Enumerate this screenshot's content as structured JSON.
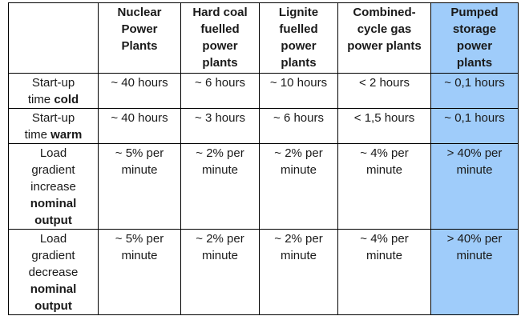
{
  "table": {
    "columns": [
      {
        "key": "label",
        "label": ""
      },
      {
        "key": "nuclear",
        "lines": [
          "Nuclear",
          "Power",
          "Plants"
        ]
      },
      {
        "key": "hard_coal",
        "lines": [
          "Hard coal",
          "fuelled",
          "power",
          "plants"
        ]
      },
      {
        "key": "lignite",
        "lines": [
          "Lignite",
          "fuelled",
          "power",
          "plants"
        ]
      },
      {
        "key": "ccgt",
        "lines": [
          "Combined-",
          "cycle gas",
          "power plants"
        ]
      },
      {
        "key": "pumped",
        "lines": [
          "Pumped",
          "storage",
          "power",
          "plants"
        ],
        "highlight_color": "#9fccfa"
      }
    ],
    "rows": [
      {
        "label_lines": [
          {
            "text": "Start-up",
            "bold": ""
          },
          {
            "text": "time ",
            "bold": "cold"
          }
        ],
        "values": [
          [
            "~ 40 hours"
          ],
          [
            "~ 6 hours"
          ],
          [
            "~ 10 hours"
          ],
          [
            "< 2 hours"
          ],
          [
            "~ 0,1 hours"
          ]
        ]
      },
      {
        "label_lines": [
          {
            "text": "Start-up",
            "bold": ""
          },
          {
            "text": "time ",
            "bold": "warm"
          }
        ],
        "values": [
          [
            "~ 40 hours"
          ],
          [
            "~ 3 hours"
          ],
          [
            "~ 6 hours"
          ],
          [
            "< 1,5 hours"
          ],
          [
            "~ 0,1 hours"
          ]
        ]
      },
      {
        "label_lines": [
          {
            "text": "Load",
            "bold": ""
          },
          {
            "text": "gradient",
            "bold": ""
          },
          {
            "text": "increase",
            "bold": ""
          },
          {
            "text": "",
            "bold": "nominal"
          },
          {
            "text": "",
            "bold": "output"
          }
        ],
        "values": [
          [
            "~ 5% per",
            "minute"
          ],
          [
            "~ 2% per",
            "minute"
          ],
          [
            "~ 2% per",
            "minute"
          ],
          [
            "~ 4% per",
            "minute"
          ],
          [
            "> 40% per",
            "minute"
          ]
        ]
      },
      {
        "label_lines": [
          {
            "text": "Load",
            "bold": ""
          },
          {
            "text": "gradient",
            "bold": ""
          },
          {
            "text": "decrease",
            "bold": ""
          },
          {
            "text": "",
            "bold": "nominal"
          },
          {
            "text": "",
            "bold": "output"
          }
        ],
        "values": [
          [
            "~ 5% per",
            "minute"
          ],
          [
            "~ 2% per",
            "minute"
          ],
          [
            "~ 2% per",
            "minute"
          ],
          [
            "~ 4% per",
            "minute"
          ],
          [
            "> 40% per",
            "minute"
          ]
        ]
      }
    ]
  }
}
